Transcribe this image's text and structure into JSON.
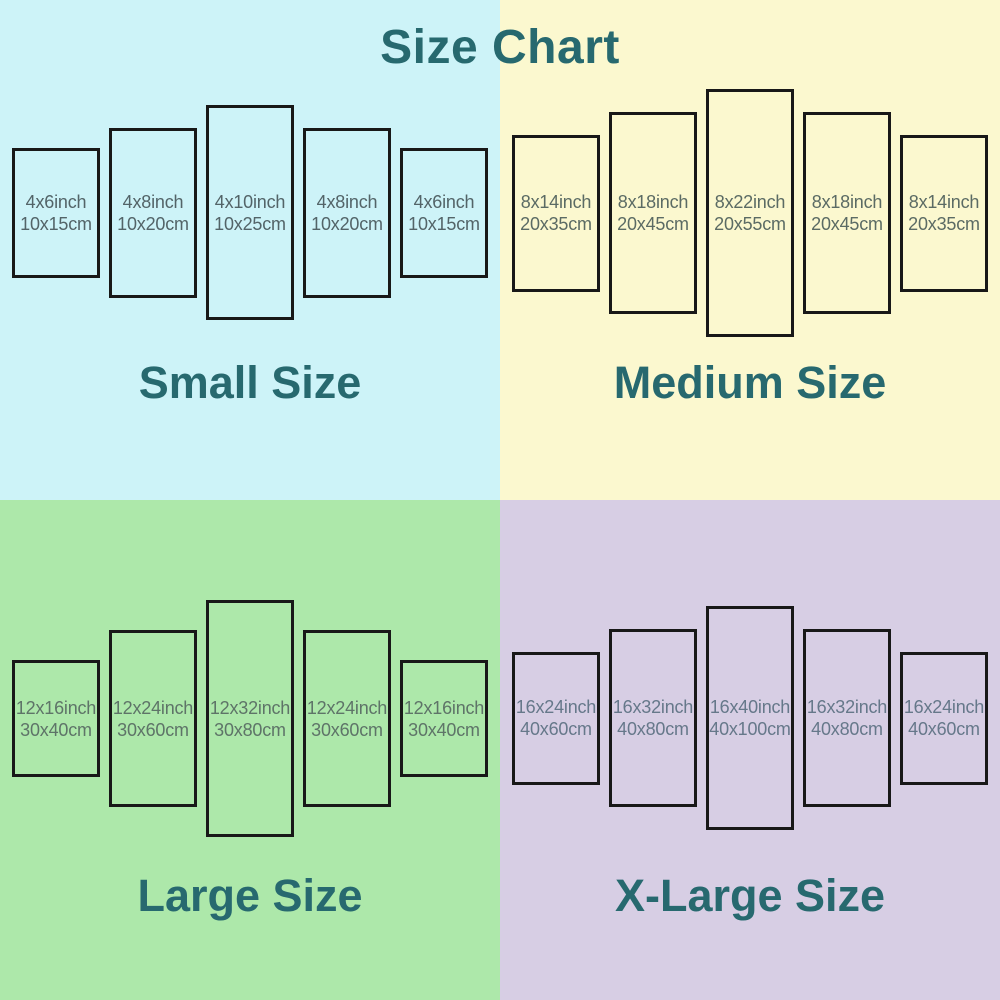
{
  "title": "Size Chart",
  "colors": {
    "heading_teal": "#27696f",
    "panel_border": "#181818",
    "bg_small": "#cdf3f8",
    "bg_medium": "#fbf8cf",
    "bg_large": "#ade8aa",
    "bg_xlarge": "#d7cee4"
  },
  "quadrants": [
    {
      "label": "Small Size",
      "bg": "#cdf3f8",
      "text_color": "#536468",
      "panels": [
        {
          "inch": "4x6inch",
          "cm": "10x15cm"
        },
        {
          "inch": "4x8inch",
          "cm": "10x20cm"
        },
        {
          "inch": "4x10inch",
          "cm": "10x25cm"
        },
        {
          "inch": "4x8inch",
          "cm": "10x20cm"
        },
        {
          "inch": "4x6inch",
          "cm": "10x15cm"
        }
      ]
    },
    {
      "label": "Medium Size",
      "bg": "#fbf8cf",
      "text_color": "#5b6b64",
      "panels": [
        {
          "inch": "8x14inch",
          "cm": "20x35cm"
        },
        {
          "inch": "8x18inch",
          "cm": "20x45cm"
        },
        {
          "inch": "8x22inch",
          "cm": "20x55cm"
        },
        {
          "inch": "8x18inch",
          "cm": "20x45cm"
        },
        {
          "inch": "8x14inch",
          "cm": "20x35cm"
        }
      ]
    },
    {
      "label": "Large Size",
      "bg": "#ade8aa",
      "text_color": "#5e7468",
      "panels": [
        {
          "inch": "12x16inch",
          "cm": "30x40cm"
        },
        {
          "inch": "12x24inch",
          "cm": "30x60cm"
        },
        {
          "inch": "12x32inch",
          "cm": "30x80cm"
        },
        {
          "inch": "12x24inch",
          "cm": "30x60cm"
        },
        {
          "inch": "12x16inch",
          "cm": "30x40cm"
        }
      ]
    },
    {
      "label": "X-Large Size",
      "bg": "#d7cee4",
      "text_color": "#66788a",
      "panels": [
        {
          "inch": "16x24inch",
          "cm": "40x60cm"
        },
        {
          "inch": "16x32inch",
          "cm": "40x80cm"
        },
        {
          "inch": "16x40inch",
          "cm": "40x100cm"
        },
        {
          "inch": "16x32inch",
          "cm": "40x80cm"
        },
        {
          "inch": "16x24inch",
          "cm": "40x60cm"
        }
      ]
    }
  ]
}
